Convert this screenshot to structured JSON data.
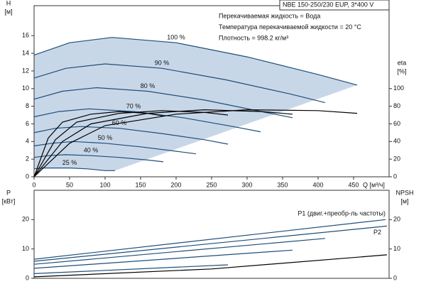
{
  "chart_data": [
    {
      "type": "line",
      "title": "NBE 150-250/230 EUP, 3*400 V",
      "notes": [
        "Перекачиваемая жидкость = Вода",
        "Температура перекачиваемой жидкости = 20 °C",
        "Плотность = 998.2 кг/м³"
      ],
      "y_label": "H",
      "y_unit": "[м]",
      "y2_label": "eta",
      "y2_unit": "[%]",
      "x_label": "Q [м³/ч]",
      "xlim": [
        0,
        500
      ],
      "xticks": [
        0,
        50,
        100,
        150,
        200,
        250,
        300,
        350,
        400,
        450
      ],
      "ylim": [
        0,
        19.4
      ],
      "yticks": [
        0,
        2,
        4,
        6,
        8,
        10,
        12,
        14,
        16
      ],
      "y2lim": [
        0,
        194
      ],
      "y2ticks": [
        0,
        20,
        40,
        60,
        80,
        100
      ],
      "area_color": "#c8d7e8",
      "series": [
        {
          "name": "100 %",
          "color": "#1f4e79",
          "x": [
            0,
            50,
            110,
            200,
            300,
            400,
            455
          ],
          "values": [
            13.8,
            15.2,
            15.8,
            15.2,
            13.6,
            11.6,
            10.4
          ]
        },
        {
          "name": "90 %",
          "color": "#1f4e79",
          "x": [
            0,
            45,
            100,
            180,
            270,
            360,
            410
          ],
          "values": [
            11.2,
            12.3,
            12.8,
            12.3,
            11.0,
            9.4,
            8.4
          ]
        },
        {
          "name": "80 %",
          "color": "#1f4e79",
          "x": [
            0,
            40,
            88,
            160,
            240,
            320,
            364
          ],
          "values": [
            8.8,
            9.7,
            10.1,
            9.7,
            8.7,
            7.4,
            6.7
          ]
        },
        {
          "name": "70 %",
          "color": "#1f4e79",
          "x": [
            0,
            35,
            77,
            140,
            210,
            280,
            319
          ],
          "values": [
            6.8,
            7.4,
            7.7,
            7.4,
            6.7,
            5.7,
            5.1
          ]
        },
        {
          "name": "60 %",
          "color": "#1f4e79",
          "x": [
            0,
            30,
            66,
            120,
            180,
            240,
            273
          ],
          "values": [
            5.0,
            5.5,
            5.7,
            5.5,
            4.9,
            4.2,
            3.7
          ]
        },
        {
          "name": "50 %",
          "color": "#1f4e79",
          "x": [
            0,
            25,
            55,
            100,
            150,
            200,
            228
          ],
          "values": [
            3.5,
            3.8,
            4.0,
            3.8,
            3.4,
            2.9,
            2.6
          ]
        },
        {
          "name": "40 %",
          "color": "#1f4e79",
          "x": [
            0,
            20,
            44,
            80,
            120,
            160,
            182
          ],
          "values": [
            2.2,
            2.4,
            2.5,
            2.4,
            2.2,
            1.9,
            1.7
          ]
        },
        {
          "name": "25 %",
          "color": "#1f4e79",
          "x": [
            0,
            12.5,
            27.5,
            50,
            75,
            100,
            114
          ],
          "values": [
            0.9,
            1.0,
            1.0,
            1.0,
            0.9,
            0.7,
            0.7
          ]
        },
        {
          "color": "#000000",
          "axis": "y2",
          "x": [
            0,
            50,
            100,
            200,
            300,
            400,
            455
          ],
          "values": [
            0,
            38,
            58,
            71,
            76,
            75,
            72
          ]
        },
        {
          "color": "#000000",
          "axis": "y2",
          "x": [
            0,
            40,
            80,
            160,
            240,
            320,
            364
          ],
          "values": [
            0,
            40,
            60,
            72,
            76,
            74,
            71
          ]
        },
        {
          "color": "#000000",
          "axis": "y2",
          "x": [
            0,
            30,
            60,
            120,
            180,
            240,
            273
          ],
          "values": [
            0,
            42,
            62,
            72,
            75,
            73,
            70
          ]
        },
        {
          "color": "#000000",
          "axis": "y2",
          "x": [
            0,
            20,
            40,
            80,
            120,
            160,
            182
          ],
          "values": [
            0,
            44,
            62,
            71,
            74,
            72,
            69
          ]
        }
      ]
    },
    {
      "type": "line",
      "y_label": "P",
      "y_unit": "[кВт]",
      "y2_label": "NPSH",
      "y2_unit": "[м]",
      "xlim": [
        0,
        500
      ],
      "ylim": [
        0,
        30
      ],
      "yticks": [
        0,
        10,
        20
      ],
      "y2lim": [
        0,
        30
      ],
      "y2ticks": [
        0,
        10,
        20
      ],
      "series": [
        {
          "name": "P1 (двиг.+преобр-ль частоты)",
          "color": "#1f4e79",
          "x": [
            0,
            495
          ],
          "values": [
            6.5,
            20
          ]
        },
        {
          "name": "P2",
          "color": "#1f4e79",
          "x": [
            0,
            497
          ],
          "values": [
            5.8,
            17.8
          ]
        },
        {
          "color": "#1f4e79",
          "x": [
            0,
            410
          ],
          "values": [
            4.8,
            13.6
          ]
        },
        {
          "color": "#1f4e79",
          "x": [
            0,
            364
          ],
          "values": [
            3.4,
            9.6
          ]
        },
        {
          "color": "#1f4e79",
          "x": [
            0,
            273
          ],
          "values": [
            1.6,
            4.6
          ]
        },
        {
          "color": "#000000",
          "axis": "y2",
          "x": [
            0,
            250,
            497
          ],
          "values": [
            0.5,
            3.2,
            8
          ]
        }
      ]
    }
  ]
}
